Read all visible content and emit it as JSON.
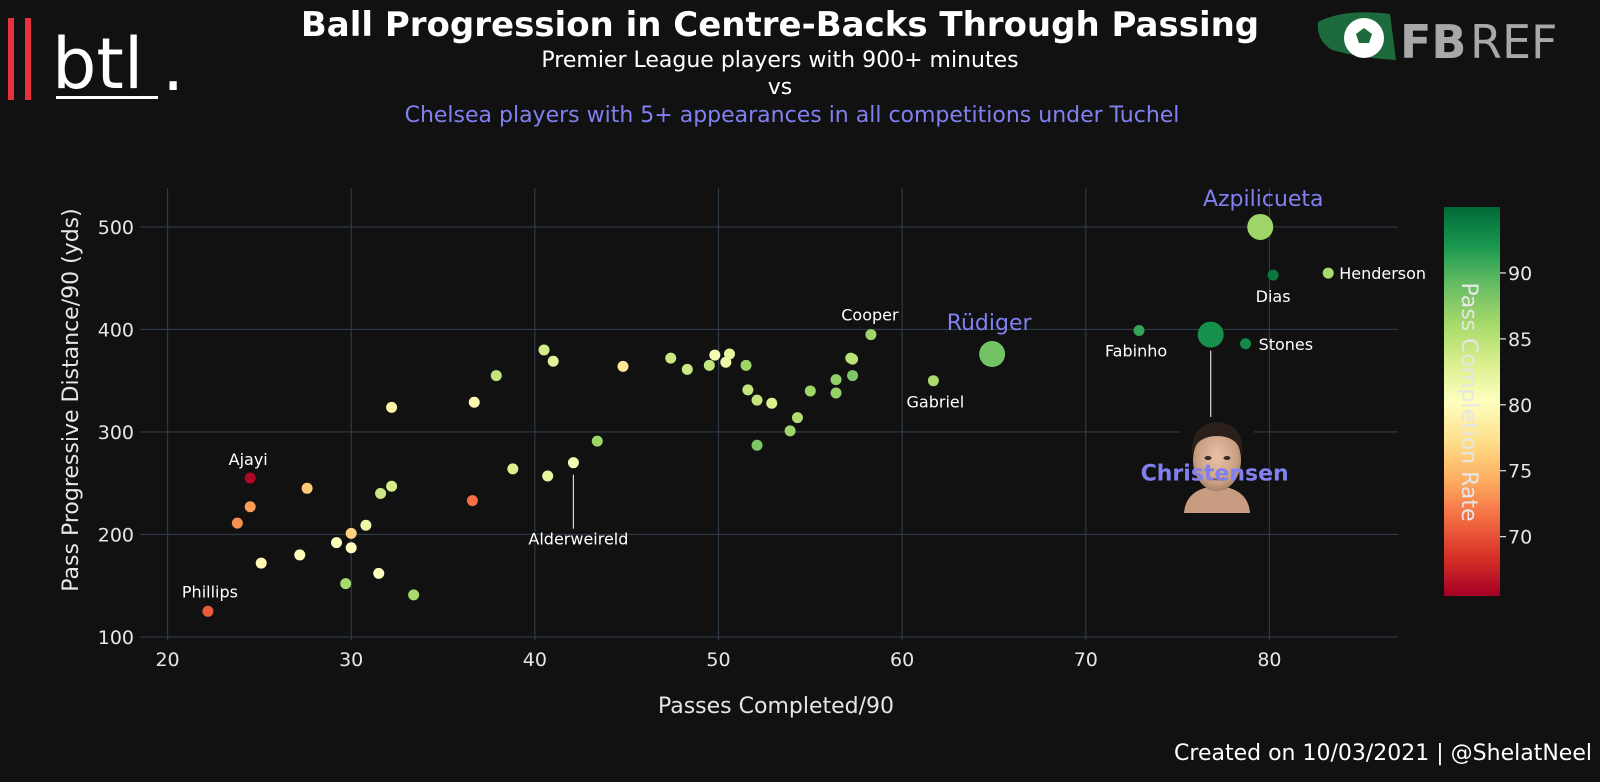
{
  "header": {
    "title": "Ball Progression in Centre-Backs Through Passing",
    "subtitle": "Premier League players with 900+ minutes",
    "vs_label": "vs",
    "subtitle2": "Chelsea players with 5+ appearances in all competitions under Tuchel"
  },
  "logos": {
    "left_text": "btl",
    "left_dot": ".",
    "right_fb": "FB",
    "right_ref": "REF"
  },
  "credit": "Created on 10/03/2021 | @ShelatNeel",
  "colors": {
    "background": "#111111",
    "highlight": "#8080f0",
    "grid": "#2e3a46",
    "accent_red": "#e8313a"
  },
  "chart_data": {
    "type": "scatter",
    "xlabel": "Passes Completed/90",
    "ylabel": "Pass Progressive Distance/90 (yds)",
    "xlim": [
      18.5,
      87
    ],
    "ylim": [
      97,
      538
    ],
    "xticks": [
      20,
      30,
      40,
      50,
      60,
      70,
      80
    ],
    "yticks": [
      100,
      200,
      300,
      400,
      500
    ],
    "grid": true,
    "colorbar": {
      "label": "Pass Completion Rate",
      "range": [
        65.5,
        95
      ],
      "ticks": [
        70,
        75,
        80,
        85,
        90
      ],
      "colorscale": "RdYlGn"
    },
    "points": [
      {
        "x": 22.2,
        "y": 125,
        "c": 70.5,
        "label": "Phillips"
      },
      {
        "x": 24.5,
        "y": 255,
        "c": 66,
        "label": "Ajayi"
      },
      {
        "x": 23.8,
        "y": 211,
        "c": 73
      },
      {
        "x": 24.5,
        "y": 227,
        "c": 73.5
      },
      {
        "x": 25.1,
        "y": 172,
        "c": 79.5
      },
      {
        "x": 27.2,
        "y": 180,
        "c": 80
      },
      {
        "x": 27.6,
        "y": 245,
        "c": 76
      },
      {
        "x": 29.2,
        "y": 192,
        "c": 80.5
      },
      {
        "x": 29.7,
        "y": 152,
        "c": 86
      },
      {
        "x": 30,
        "y": 201,
        "c": 76.5
      },
      {
        "x": 30,
        "y": 187,
        "c": 80
      },
      {
        "x": 30.8,
        "y": 209,
        "c": 81.5
      },
      {
        "x": 31.5,
        "y": 162,
        "c": 80.5
      },
      {
        "x": 31.6,
        "y": 240,
        "c": 84
      },
      {
        "x": 32.2,
        "y": 247,
        "c": 83.5
      },
      {
        "x": 32.2,
        "y": 324,
        "c": 79
      },
      {
        "x": 33.4,
        "y": 141,
        "c": 86
      },
      {
        "x": 36.6,
        "y": 233,
        "c": 71.5
      },
      {
        "x": 36.7,
        "y": 329,
        "c": 79.5
      },
      {
        "x": 37.9,
        "y": 355,
        "c": 84.5
      },
      {
        "x": 38.8,
        "y": 264,
        "c": 83
      },
      {
        "x": 40.5,
        "y": 380,
        "c": 83.5
      },
      {
        "x": 40.7,
        "y": 257,
        "c": 82
      },
      {
        "x": 41,
        "y": 369,
        "c": 82.5
      },
      {
        "x": 42.1,
        "y": 270,
        "c": 81,
        "label": "Alderweireld"
      },
      {
        "x": 43.4,
        "y": 291,
        "c": 86.5
      },
      {
        "x": 44.8,
        "y": 364,
        "c": 78
      },
      {
        "x": 47.4,
        "y": 372,
        "c": 84
      },
      {
        "x": 48.3,
        "y": 361,
        "c": 84
      },
      {
        "x": 49.5,
        "y": 365,
        "c": 84.5
      },
      {
        "x": 49.8,
        "y": 375,
        "c": 81
      },
      {
        "x": 50.4,
        "y": 368,
        "c": 81.5
      },
      {
        "x": 50.6,
        "y": 376,
        "c": 82
      },
      {
        "x": 51.5,
        "y": 365,
        "c": 86.5
      },
      {
        "x": 51.6,
        "y": 341,
        "c": 84.5
      },
      {
        "x": 52.1,
        "y": 331,
        "c": 84.5
      },
      {
        "x": 52.1,
        "y": 287,
        "c": 88
      },
      {
        "x": 52.9,
        "y": 328,
        "c": 83
      },
      {
        "x": 53.9,
        "y": 301,
        "c": 86.5
      },
      {
        "x": 54.3,
        "y": 314,
        "c": 85.5
      },
      {
        "x": 55,
        "y": 340,
        "c": 86.5
      },
      {
        "x": 56.4,
        "y": 351,
        "c": 87
      },
      {
        "x": 56.4,
        "y": 338,
        "c": 87
      },
      {
        "x": 57.2,
        "y": 372,
        "c": 85.5
      },
      {
        "x": 57.3,
        "y": 371,
        "c": 85
      },
      {
        "x": 57.3,
        "y": 355,
        "c": 88
      },
      {
        "x": 58.3,
        "y": 395,
        "c": 86.5,
        "label": "Cooper"
      },
      {
        "x": 61.7,
        "y": 350,
        "c": 86,
        "label": "Gabriel"
      },
      {
        "x": 64.9,
        "y": 376,
        "c": 88.5,
        "label": "Rüdiger",
        "highlight": true
      },
      {
        "x": 72.9,
        "y": 399,
        "c": 91,
        "label": "Fabinho"
      },
      {
        "x": 76.8,
        "y": 395,
        "c": 92.5,
        "label": "Christensen",
        "highlight": true
      },
      {
        "x": 78.7,
        "y": 386,
        "c": 93,
        "label": "Stones"
      },
      {
        "x": 79.5,
        "y": 500,
        "c": 86.5,
        "label": "Azpilicueta",
        "highlight": true
      },
      {
        "x": 80.2,
        "y": 453,
        "c": 94,
        "label": "Dias"
      },
      {
        "x": 83.2,
        "y": 455,
        "c": 86,
        "label": "Henderson"
      }
    ]
  }
}
